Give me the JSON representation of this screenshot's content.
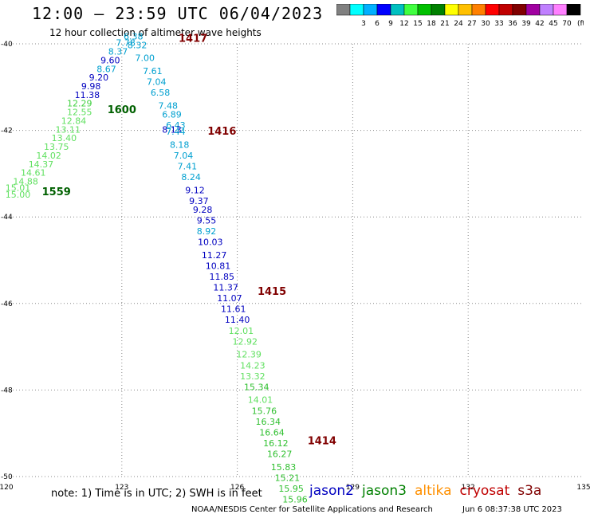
{
  "header": {
    "title": "12:00 – 23:59 UTC 06/04/2023",
    "subtitle": "12 hour collection of altimeter wave heights"
  },
  "legend": {
    "unit_label": "(ft)",
    "bins": [
      {
        "label": "",
        "color": "#808080"
      },
      {
        "label": "3",
        "color": "#00ffff"
      },
      {
        "label": "6",
        "color": "#00b0ff"
      },
      {
        "label": "9",
        "color": "#0000ff"
      },
      {
        "label": "12",
        "color": "#00c0c0"
      },
      {
        "label": "15",
        "color": "#40ff40"
      },
      {
        "label": "18",
        "color": "#00c000"
      },
      {
        "label": "21",
        "color": "#008000"
      },
      {
        "label": "24",
        "color": "#ffff00"
      },
      {
        "label": "27",
        "color": "#ffc000"
      },
      {
        "label": "30",
        "color": "#ff8000"
      },
      {
        "label": "33",
        "color": "#ff0000"
      },
      {
        "label": "36",
        "color": "#c00000"
      },
      {
        "label": "39",
        "color": "#800000"
      },
      {
        "label": "42",
        "color": "#a000a0"
      },
      {
        "label": "45",
        "color": "#c080ff"
      },
      {
        "label": "70",
        "color": "#ff80ff"
      },
      {
        "label": "",
        "color": "#000000"
      }
    ]
  },
  "map": {
    "lon_ticks": [
      "120",
      "123",
      "126",
      "129",
      "132",
      "135"
    ],
    "lat_ticks": [
      "-40",
      "-42",
      "-44",
      "-46",
      "-48",
      "-50"
    ],
    "lon_range": [
      120,
      135
    ],
    "lat_range": [
      -50,
      -40
    ]
  },
  "time_labels": [
    {
      "text": "1417",
      "lat": -39.95,
      "lon": 124.85,
      "color": "#800000"
    },
    {
      "text": "1416",
      "lat": -42.1,
      "lon": 125.6,
      "color": "#800000"
    },
    {
      "text": "1415",
      "lat": -45.8,
      "lon": 126.9,
      "color": "#800000"
    },
    {
      "text": "1414",
      "lat": -49.25,
      "lon": 128.2,
      "color": "#800000"
    },
    {
      "text": "1600",
      "lat": -41.6,
      "lon": 123.0,
      "color": "#006000"
    },
    {
      "text": "1559",
      "lat": -43.5,
      "lon": 121.3,
      "color": "#006000"
    }
  ],
  "swh_points": [
    {
      "text": "6.38",
      "lat": -39.9,
      "lon": 123.3,
      "color": "#00a0d0"
    },
    {
      "text": "7.78",
      "lat": -40.05,
      "lon": 123.1,
      "color": "#00a0d0"
    },
    {
      "text": "8.32",
      "lat": -40.1,
      "lon": 123.4,
      "color": "#00a0d0"
    },
    {
      "text": "8.37",
      "lat": -40.25,
      "lon": 122.9,
      "color": "#00a0d0"
    },
    {
      "text": "9.60",
      "lat": -40.45,
      "lon": 122.7,
      "color": "#0000c0"
    },
    {
      "text": "8.67",
      "lat": -40.65,
      "lon": 122.6,
      "color": "#00a0d0"
    },
    {
      "text": "9.20",
      "lat": -40.85,
      "lon": 122.4,
      "color": "#0000c0"
    },
    {
      "text": "9.98",
      "lat": -41.05,
      "lon": 122.2,
      "color": "#0000c0"
    },
    {
      "text": "11.38",
      "lat": -41.25,
      "lon": 122.1,
      "color": "#0000c0"
    },
    {
      "text": "12.29",
      "lat": -41.45,
      "lon": 121.9,
      "color": "#40d040"
    },
    {
      "text": "7.00",
      "lat": -40.4,
      "lon": 123.6,
      "color": "#00a0d0"
    },
    {
      "text": "7.61",
      "lat": -40.7,
      "lon": 123.8,
      "color": "#00a0d0"
    },
    {
      "text": "7.04",
      "lat": -40.95,
      "lon": 123.9,
      "color": "#00a0d0"
    },
    {
      "text": "6.58",
      "lat": -41.2,
      "lon": 124.0,
      "color": "#00a0d0"
    },
    {
      "text": "7.48",
      "lat": -41.5,
      "lon": 124.2,
      "color": "#00a0d0"
    },
    {
      "text": "6.89",
      "lat": -41.7,
      "lon": 124.3,
      "color": "#00a0d0"
    },
    {
      "text": "6.43",
      "lat": -41.95,
      "lon": 124.4,
      "color": "#00a0d0"
    },
    {
      "text": "8.13",
      "lat": -42.05,
      "lon": 124.3,
      "color": "#0000c0"
    },
    {
      "text": "7.44",
      "lat": -42.1,
      "lon": 124.4,
      "color": "#00a0d0"
    },
    {
      "text": "8.18",
      "lat": -42.4,
      "lon": 124.5,
      "color": "#00a0d0"
    },
    {
      "text": "7.04",
      "lat": -42.65,
      "lon": 124.6,
      "color": "#00a0d0"
    },
    {
      "text": "7.41",
      "lat": -42.9,
      "lon": 124.7,
      "color": "#00a0d0"
    },
    {
      "text": "8.24",
      "lat": -43.15,
      "lon": 124.8,
      "color": "#00a0d0"
    },
    {
      "text": "9.12",
      "lat": -43.45,
      "lon": 124.9,
      "color": "#0000c0"
    },
    {
      "text": "9.37",
      "lat": -43.7,
      "lon": 125.0,
      "color": "#0000c0"
    },
    {
      "text": "9.28",
      "lat": -43.9,
      "lon": 125.1,
      "color": "#0000c0"
    },
    {
      "text": "9.55",
      "lat": -44.15,
      "lon": 125.2,
      "color": "#0000c0"
    },
    {
      "text": "8.92",
      "lat": -44.4,
      "lon": 125.2,
      "color": "#00a0d0"
    },
    {
      "text": "10.03",
      "lat": -44.65,
      "lon": 125.3,
      "color": "#0000c0"
    },
    {
      "text": "11.27",
      "lat": -44.95,
      "lon": 125.4,
      "color": "#0000c0"
    },
    {
      "text": "10.81",
      "lat": -45.2,
      "lon": 125.5,
      "color": "#0000c0"
    },
    {
      "text": "11.85",
      "lat": -45.45,
      "lon": 125.6,
      "color": "#0000c0"
    },
    {
      "text": "11.37",
      "lat": -45.7,
      "lon": 125.7,
      "color": "#0000c0"
    },
    {
      "text": "11.07",
      "lat": -45.95,
      "lon": 125.8,
      "color": "#0000c0"
    },
    {
      "text": "11.61",
      "lat": -46.2,
      "lon": 125.9,
      "color": "#0000c0"
    },
    {
      "text": "11.40",
      "lat": -46.45,
      "lon": 126.0,
      "color": "#0000c0"
    },
    {
      "text": "12.01",
      "lat": -46.7,
      "lon": 126.1,
      "color": "#60e060"
    },
    {
      "text": "12.92",
      "lat": -46.95,
      "lon": 126.2,
      "color": "#60e060"
    },
    {
      "text": "12.39",
      "lat": -47.25,
      "lon": 126.3,
      "color": "#60e060"
    },
    {
      "text": "14.23",
      "lat": -47.5,
      "lon": 126.4,
      "color": "#60e060"
    },
    {
      "text": "13.32",
      "lat": -47.75,
      "lon": 126.4,
      "color": "#60e060"
    },
    {
      "text": "15.34",
      "lat": -48.0,
      "lon": 126.5,
      "color": "#30c030"
    },
    {
      "text": "14.01",
      "lat": -48.3,
      "lon": 126.6,
      "color": "#60e060"
    },
    {
      "text": "15.76",
      "lat": -48.55,
      "lon": 126.7,
      "color": "#30c030"
    },
    {
      "text": "16.34",
      "lat": -48.8,
      "lon": 126.8,
      "color": "#30c030"
    },
    {
      "text": "16.64",
      "lat": -49.05,
      "lon": 126.9,
      "color": "#30c030"
    },
    {
      "text": "16.12",
      "lat": -49.3,
      "lon": 127.0,
      "color": "#30c030"
    },
    {
      "text": "16.27",
      "lat": -49.55,
      "lon": 127.1,
      "color": "#30c030"
    },
    {
      "text": "15.83",
      "lat": -49.85,
      "lon": 127.2,
      "color": "#30c030"
    },
    {
      "text": "15.21",
      "lat": -50.1,
      "lon": 127.3,
      "color": "#30c030"
    },
    {
      "text": "15.95",
      "lat": -50.35,
      "lon": 127.4,
      "color": "#30c030"
    },
    {
      "text": "15.96",
      "lat": -50.6,
      "lon": 127.5,
      "color": "#30c030"
    },
    {
      "text": "15.01",
      "lat": -43.4,
      "lon": 120.3,
      "color": "#60e060"
    },
    {
      "text": "15.00",
      "lat": -43.55,
      "lon": 120.3,
      "color": "#60e060"
    },
    {
      "text": "14.88",
      "lat": -43.25,
      "lon": 120.5,
      "color": "#60e060"
    },
    {
      "text": "14.61",
      "lat": -43.05,
      "lon": 120.7,
      "color": "#60e060"
    },
    {
      "text": "14.37",
      "lat": -42.85,
      "lon": 120.9,
      "color": "#60e060"
    },
    {
      "text": "14.02",
      "lat": -42.65,
      "lon": 121.1,
      "color": "#60e060"
    },
    {
      "text": "13.75",
      "lat": -42.45,
      "lon": 121.3,
      "color": "#60e060"
    },
    {
      "text": "13.40",
      "lat": -42.25,
      "lon": 121.5,
      "color": "#60e060"
    },
    {
      "text": "13.11",
      "lat": -42.05,
      "lon": 121.6,
      "color": "#60e060"
    },
    {
      "text": "12.84",
      "lat": -41.85,
      "lon": 121.75,
      "color": "#60e060"
    },
    {
      "text": "12.55",
      "lat": -41.65,
      "lon": 121.9,
      "color": "#60e060"
    }
  ],
  "footer": {
    "note": "note:  1) Time is in UTC; 2) SWH is in feet",
    "satellites": [
      {
        "name": "jason2",
        "color": "#0000c0"
      },
      {
        "name": "jason3",
        "color": "#008000"
      },
      {
        "name": "altika",
        "color": "#ff9000"
      },
      {
        "name": "cryosat",
        "color": "#c00000"
      },
      {
        "name": "s3a",
        "color": "#800000"
      }
    ],
    "credit": "NOAA/NESDIS Center for Satellite Applications and Research",
    "timestamp": "Jun  6 08:37:38 UTC 2023"
  }
}
